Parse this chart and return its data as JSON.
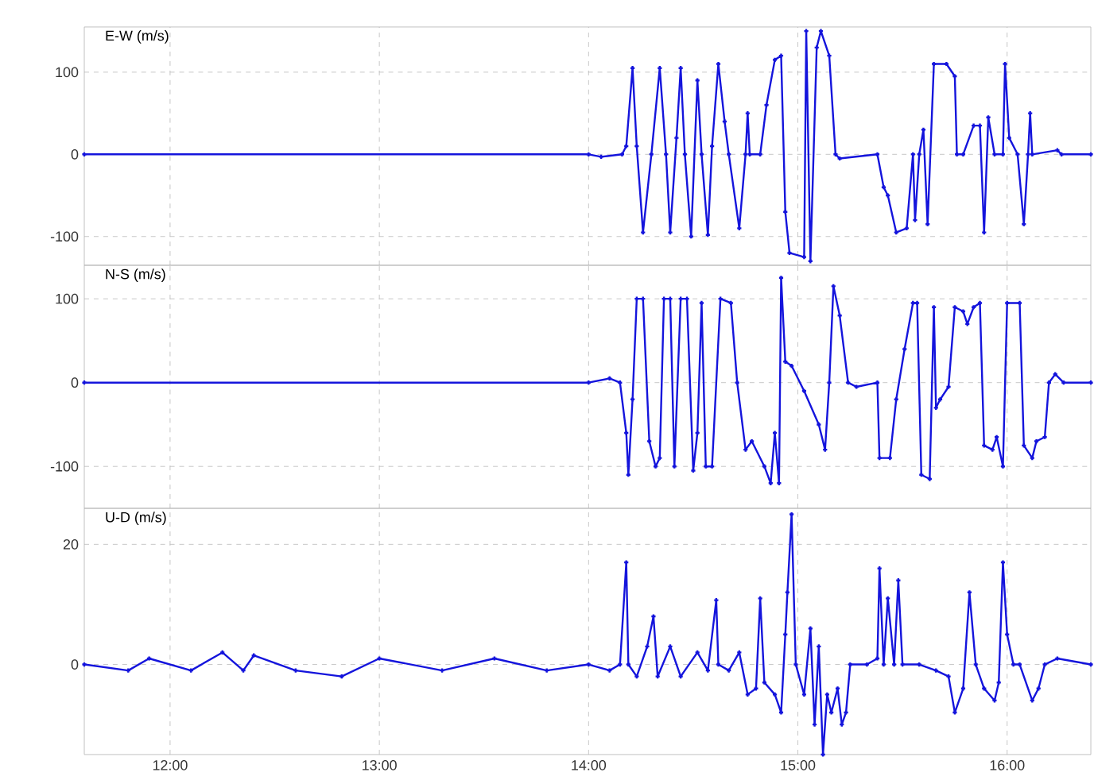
{
  "chart_data": [
    {
      "type": "line",
      "title": "E-W (m/s)",
      "color": "#1414dc",
      "marker": "cross",
      "grid": true,
      "tick_labels": "y",
      "xlim": [
        11.59,
        16.4
      ],
      "ylim": [
        -135,
        155
      ],
      "yticks": [
        -100,
        0,
        100
      ],
      "xticks": [
        {
          "value": 12,
          "label": null
        },
        {
          "value": 13,
          "label": null
        },
        {
          "value": 14,
          "label": null
        },
        {
          "value": 15,
          "label": null
        },
        {
          "value": 16,
          "label": null
        }
      ],
      "x": [
        11.59,
        14.0,
        14.06,
        14.16,
        14.18,
        14.21,
        14.23,
        14.26,
        14.3,
        14.34,
        14.37,
        14.39,
        14.42,
        14.44,
        14.46,
        14.49,
        14.52,
        14.54,
        14.57,
        14.59,
        14.62,
        14.65,
        14.67,
        14.72,
        14.75,
        14.76,
        14.77,
        14.82,
        14.85,
        14.89,
        14.92,
        14.94,
        14.96,
        15.03,
        15.04,
        15.06,
        15.09,
        15.11,
        15.15,
        15.18,
        15.2,
        15.38,
        15.41,
        15.43,
        15.47,
        15.52,
        15.55,
        15.56,
        15.58,
        15.6,
        15.62,
        15.65,
        15.71,
        15.75,
        15.76,
        15.79,
        15.84,
        15.87,
        15.89,
        15.91,
        15.94,
        15.98,
        15.99,
        16.01,
        16.05,
        16.08,
        16.1,
        16.11,
        16.12,
        16.24,
        16.26,
        16.4
      ],
      "values": [
        0,
        0,
        -3,
        0,
        10,
        105,
        10,
        -95,
        0,
        105,
        0,
        -95,
        20,
        105,
        0,
        -100,
        90,
        0,
        -98,
        10,
        110,
        40,
        0,
        -90,
        0,
        50,
        0,
        0,
        60,
        115,
        120,
        -70,
        -120,
        -125,
        150,
        -130,
        130,
        150,
        120,
        0,
        -5,
        0,
        -40,
        -50,
        -95,
        -90,
        0,
        -80,
        0,
        30,
        -85,
        110,
        110,
        95,
        0,
        0,
        35,
        35,
        -95,
        45,
        0,
        0,
        110,
        20,
        0,
        -85,
        0,
        50,
        0,
        5,
        0,
        0
      ]
    },
    {
      "type": "line",
      "title": "N-S (m/s)",
      "color": "#1414dc",
      "marker": "cross",
      "grid": true,
      "tick_labels": "y",
      "xlim": [
        11.59,
        16.4
      ],
      "ylim": [
        -150,
        140
      ],
      "yticks": [
        -100,
        0,
        100
      ],
      "xticks": [
        {
          "value": 12,
          "label": null
        },
        {
          "value": 13,
          "label": null
        },
        {
          "value": 14,
          "label": null
        },
        {
          "value": 15,
          "label": null
        },
        {
          "value": 16,
          "label": null
        }
      ],
      "x": [
        11.59,
        14.0,
        14.1,
        14.15,
        14.18,
        14.19,
        14.21,
        14.23,
        14.26,
        14.29,
        14.32,
        14.34,
        14.36,
        14.39,
        14.41,
        14.44,
        14.47,
        14.5,
        14.52,
        14.54,
        14.56,
        14.59,
        14.63,
        14.68,
        14.71,
        14.75,
        14.78,
        14.84,
        14.87,
        14.89,
        14.91,
        14.92,
        14.94,
        14.97,
        14.99,
        15.01,
        15.03,
        15.05,
        15.07,
        15.1,
        15.13,
        15.15,
        15.17,
        15.2,
        15.24,
        15.28,
        15.38,
        15.39,
        15.44,
        15.47,
        15.51,
        15.55,
        15.57,
        15.59,
        15.63,
        15.65,
        15.66,
        15.68,
        15.72,
        15.75,
        15.79,
        15.81,
        15.84,
        15.87,
        15.89,
        15.93,
        15.95,
        15.98,
        16.0,
        16.06,
        16.08,
        16.12,
        16.14,
        16.18,
        16.2,
        16.23,
        16.27,
        16.4
      ],
      "values": [
        0,
        0,
        5,
        0,
        -60,
        -110,
        -20,
        100,
        100,
        -70,
        -100,
        -90,
        100,
        100,
        -100,
        100,
        100,
        -105,
        -60,
        95,
        -100,
        -100,
        100,
        95,
        0,
        -80,
        -70,
        -100,
        -120,
        -60,
        -120,
        125,
        25,
        20,
        null,
        null,
        -10,
        null,
        null,
        -50,
        -80,
        0,
        115,
        80,
        0,
        -5,
        0,
        -90,
        -90,
        -20,
        40,
        95,
        95,
        -110,
        -115,
        90,
        -30,
        -20,
        -5,
        90,
        85,
        70,
        90,
        95,
        -75,
        -80,
        -65,
        -100,
        95,
        95,
        -75,
        -90,
        -70,
        -65,
        0,
        10,
        0,
        0
      ]
    },
    {
      "type": "line",
      "title": "U-D (m/s)",
      "color": "#1414dc",
      "marker": "cross",
      "grid": true,
      "xlim": [
        11.59,
        16.4
      ],
      "ylim": [
        -15,
        26
      ],
      "yticks": [
        0,
        20
      ],
      "xticks": [
        {
          "value": 12,
          "label": "12:00"
        },
        {
          "value": 13,
          "label": "13:00"
        },
        {
          "value": 14,
          "label": "14:00"
        },
        {
          "value": 15,
          "label": "15:00"
        },
        {
          "value": 16,
          "label": "16:00"
        }
      ],
      "x": [
        11.59,
        11.8,
        11.9,
        12.1,
        12.25,
        12.35,
        12.4,
        12.6,
        12.82,
        13.0,
        13.3,
        13.55,
        13.8,
        14.0,
        14.1,
        14.15,
        14.18,
        14.19,
        14.23,
        14.28,
        14.31,
        14.33,
        14.39,
        14.44,
        14.52,
        14.57,
        14.61,
        14.62,
        14.67,
        14.72,
        14.76,
        14.8,
        14.82,
        14.84,
        14.89,
        14.92,
        14.94,
        14.95,
        14.97,
        14.99,
        15.03,
        15.06,
        15.08,
        15.1,
        15.12,
        15.14,
        15.16,
        15.19,
        15.21,
        15.23,
        15.25,
        15.33,
        15.38,
        15.39,
        15.41,
        15.43,
        15.46,
        15.48,
        15.5,
        15.58,
        15.66,
        15.72,
        15.75,
        15.79,
        15.82,
        15.85,
        15.89,
        15.94,
        15.96,
        15.98,
        16.0,
        16.03,
        16.06,
        16.12,
        16.15,
        16.18,
        16.24,
        16.4
      ],
      "values": [
        0,
        -1,
        1,
        -1,
        2,
        -1,
        1.5,
        -1,
        -2,
        1,
        -1,
        1,
        -1,
        0,
        -1,
        0,
        17,
        0,
        -2,
        3,
        8,
        -2,
        3,
        -2,
        2,
        -1,
        10.7,
        0,
        -1,
        2,
        -5,
        -4,
        11,
        -3,
        -5,
        -8,
        5,
        12,
        25,
        0,
        -5,
        6,
        -10,
        3,
        -15,
        -5,
        -8,
        -4,
        -10,
        -8,
        0,
        0,
        1,
        16,
        0,
        11,
        0,
        14,
        0,
        0,
        -1,
        -2,
        -8,
        -4,
        12,
        0,
        -4,
        -6,
        -3,
        17,
        5,
        0,
        0,
        -6,
        -4,
        0,
        1,
        0
      ]
    }
  ]
}
